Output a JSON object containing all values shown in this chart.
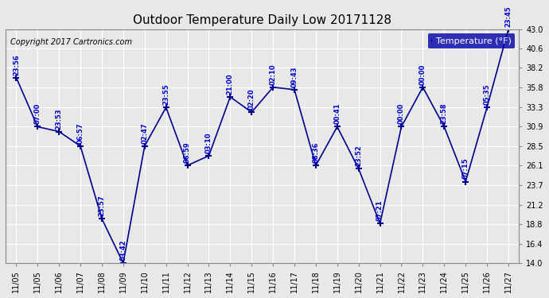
{
  "title": "Outdoor Temperature Daily Low 20171128",
  "copyright": "Copyright 2017 Cartronics.com",
  "legend_label": "Temperature (°F)",
  "x_labels": [
    "11/05",
    "11/05",
    "11/06",
    "11/07",
    "11/08",
    "11/09",
    "11/10",
    "11/11",
    "11/12",
    "11/13",
    "11/14",
    "11/15",
    "11/16",
    "11/17",
    "11/18",
    "11/19",
    "11/20",
    "11/21",
    "11/22",
    "11/23",
    "11/24",
    "11/25",
    "11/26",
    "11/27"
  ],
  "x_positions": [
    0,
    1,
    2,
    3,
    4,
    5,
    6,
    7,
    8,
    9,
    10,
    11,
    12,
    13,
    14,
    15,
    16,
    17,
    18,
    19,
    20,
    21,
    22,
    23
  ],
  "y_values": [
    37.0,
    30.9,
    30.3,
    28.5,
    19.5,
    14.0,
    28.5,
    33.3,
    26.1,
    27.3,
    34.6,
    32.7,
    35.8,
    35.5,
    26.1,
    30.9,
    25.7,
    18.9,
    30.9,
    35.8,
    30.9,
    24.1,
    33.3,
    43.0
  ],
  "time_labels": [
    "23:56",
    "07:00",
    "23:53",
    "06:57",
    "23:57",
    "03:42",
    "02:47",
    "23:55",
    "06:59",
    "03:10",
    "21:00",
    "02:20",
    "02:10",
    "09:43",
    "08:36",
    "00:41",
    "23:52",
    "07:21",
    "00:00",
    "00:00",
    "23:58",
    "07:15",
    "05:35",
    "23:45"
  ],
  "ylim": [
    14.0,
    43.0
  ],
  "yticks": [
    14.0,
    16.4,
    18.8,
    21.2,
    23.7,
    26.1,
    28.5,
    30.9,
    33.3,
    35.8,
    38.2,
    40.6,
    43.0
  ],
  "line_color": "#00008B",
  "marker_color": "#00008B",
  "label_color": "#0000CC",
  "bg_color": "#E8E8E8",
  "grid_color": "#FFFFFF",
  "title_color": "#000000",
  "legend_bg": "#0000AA",
  "legend_text": "#FFFFFF"
}
